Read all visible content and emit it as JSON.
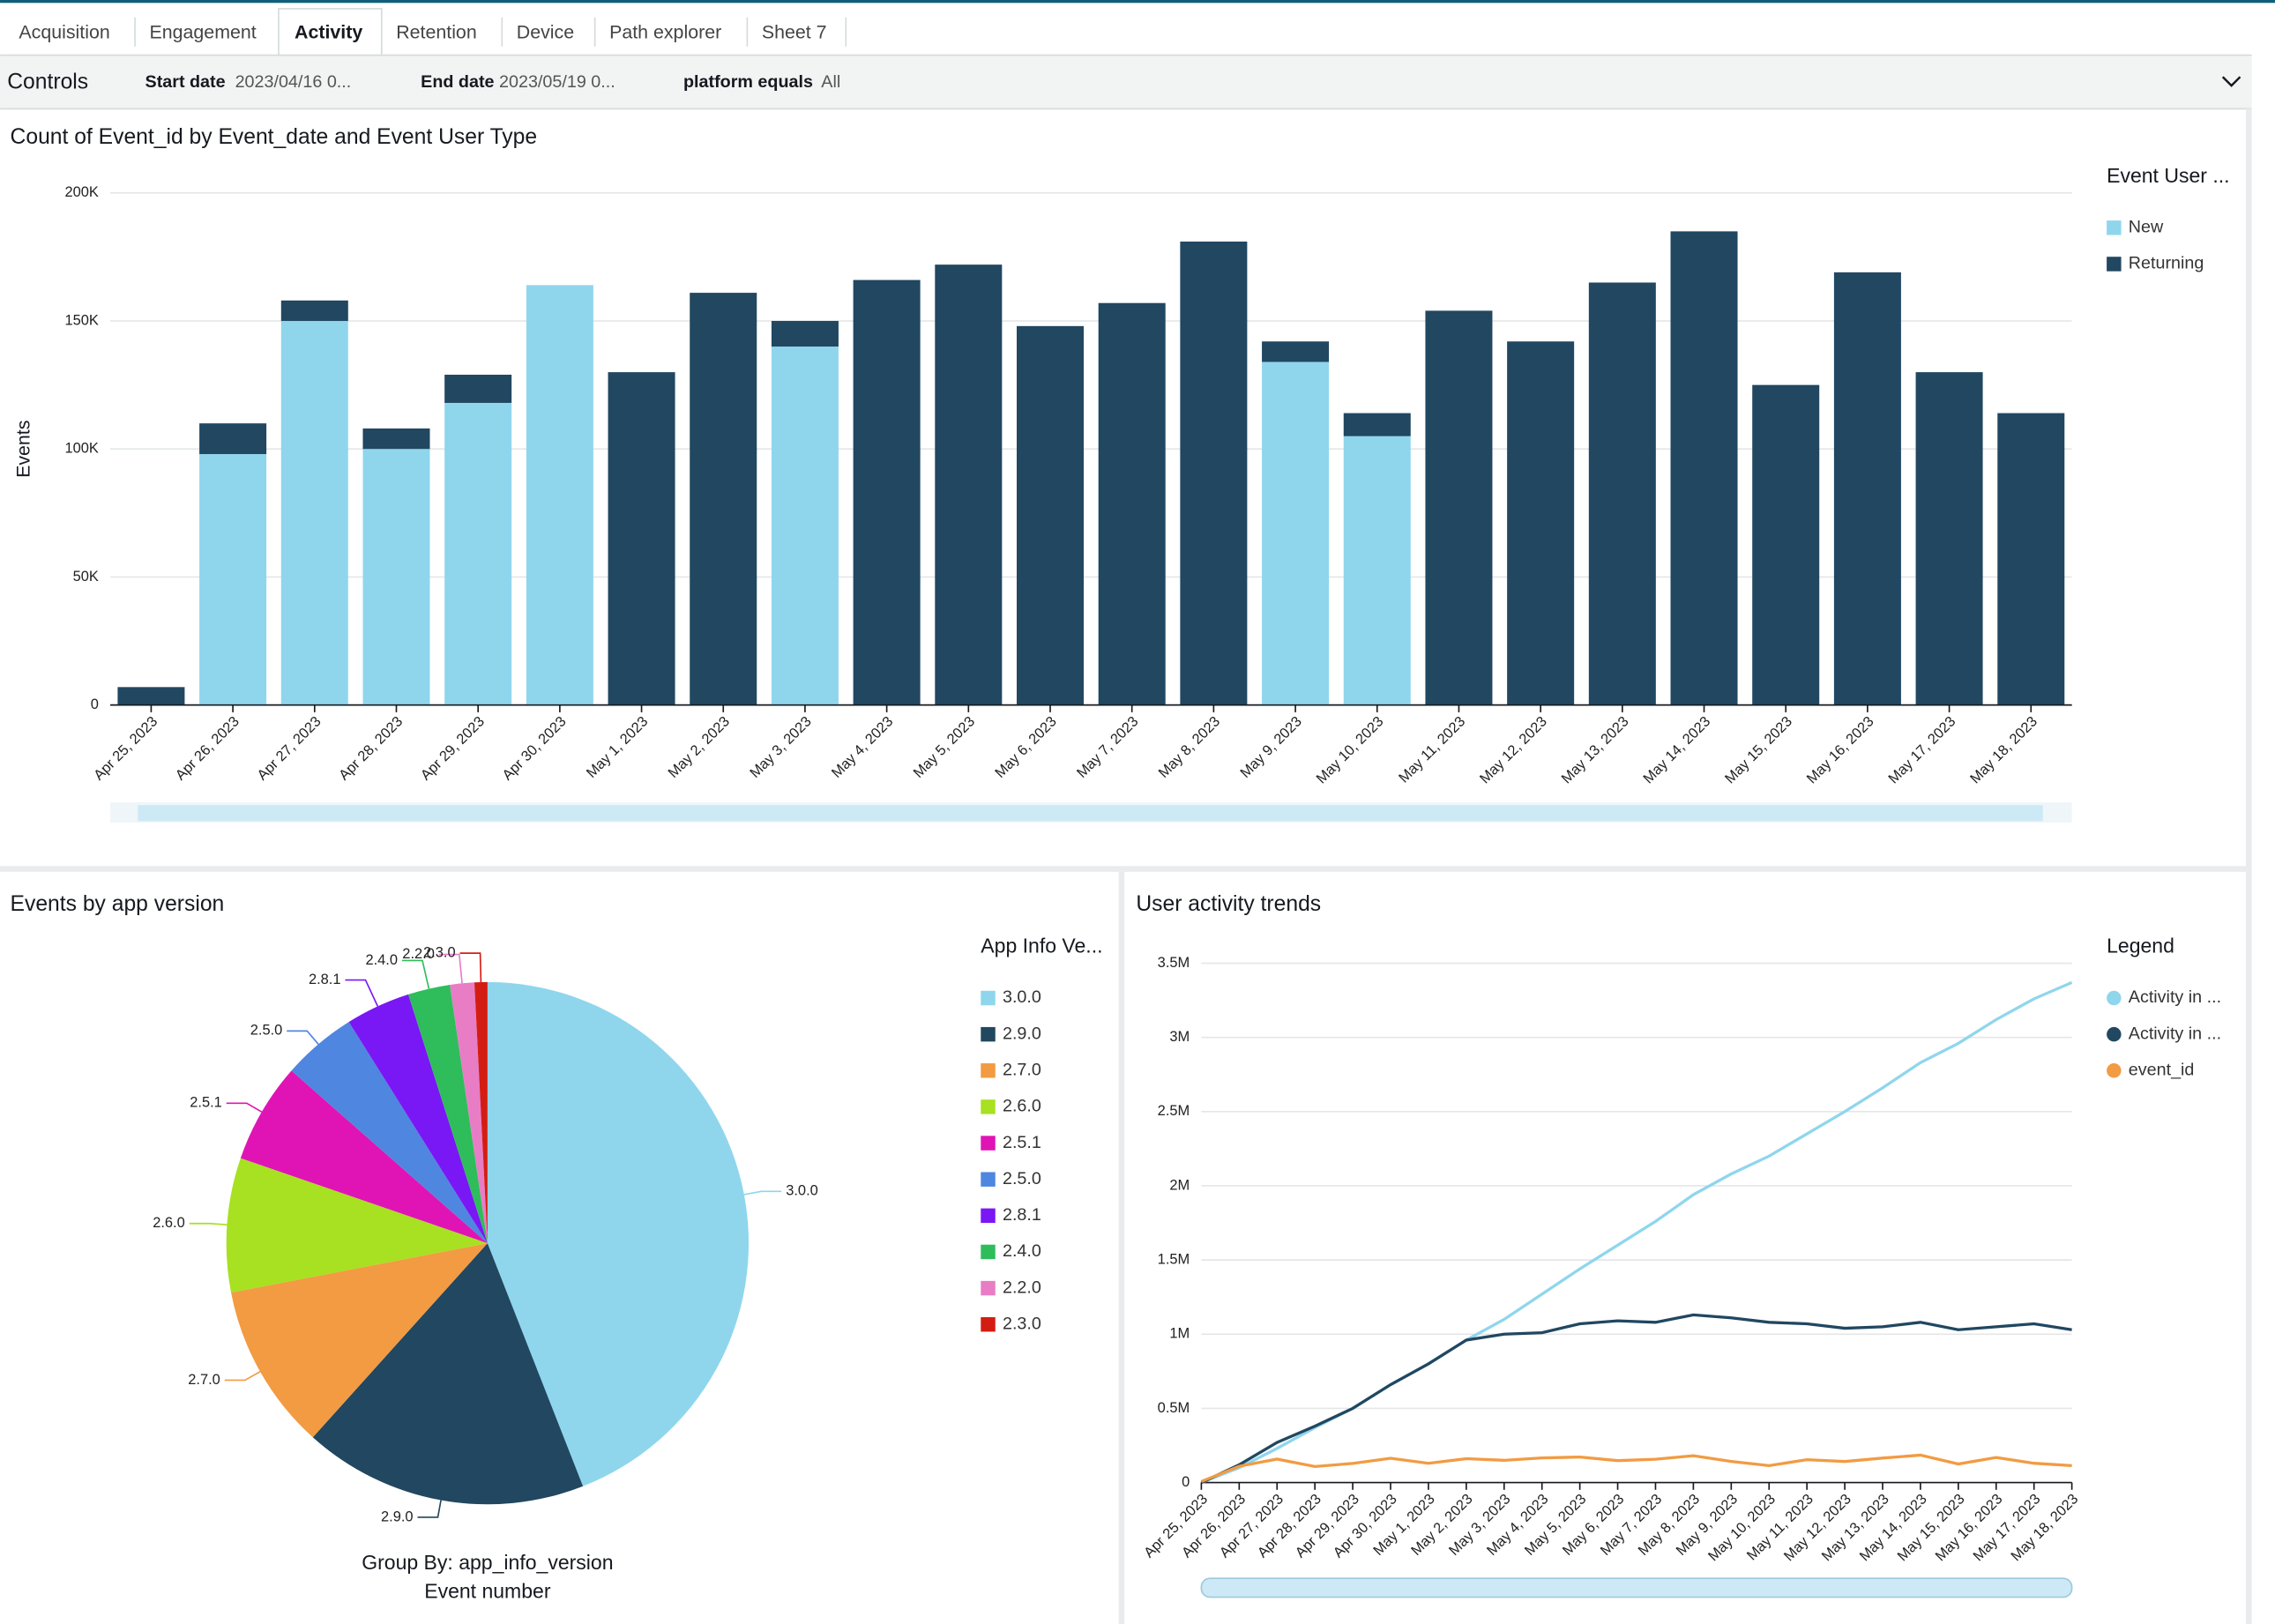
{
  "tabs": [
    "Acquisition",
    "Engagement",
    "Activity",
    "Retention",
    "Device",
    "Path explorer",
    "Sheet 7"
  ],
  "active_tab": 2,
  "controls": {
    "title": "Controls",
    "filters": [
      {
        "label": "Start date",
        "value": "2023/04/16 0..."
      },
      {
        "label": "End date",
        "value": "2023/05/19 0..."
      },
      {
        "label": "platform equals",
        "value": "All"
      }
    ]
  },
  "chart_data": [
    {
      "type": "bar",
      "stacked": true,
      "title": "Count of Event_id by Event_date and Event User Type",
      "y_label": "Events",
      "legend_title": "Event User ...",
      "legend": "right",
      "grid": true,
      "categories": [
        "Apr 25, 2023",
        "Apr 26, 2023",
        "Apr 27, 2023",
        "Apr 28, 2023",
        "Apr 29, 2023",
        "Apr 30, 2023",
        "May 1, 2023",
        "May 2, 2023",
        "May 3, 2023",
        "May 4, 2023",
        "May 5, 2023",
        "May 6, 2023",
        "May 7, 2023",
        "May 8, 2023",
        "May 9, 2023",
        "May 10, 2023",
        "May 11, 2023",
        "May 12, 2023",
        "May 13, 2023",
        "May 14, 2023",
        "May 15, 2023",
        "May 16, 2023",
        "May 17, 2023",
        "May 18, 2023"
      ],
      "series": [
        {
          "name": "New",
          "color": "#8fd6ed",
          "values": [
            0,
            98000,
            150000,
            100000,
            118000,
            164000,
            0,
            0,
            140000,
            0,
            0,
            0,
            0,
            0,
            134000,
            105000,
            0,
            0,
            0,
            0,
            0,
            0,
            0,
            0
          ]
        },
        {
          "name": "Returning",
          "color": "#214761",
          "values": [
            7000,
            12000,
            8000,
            8000,
            11000,
            0,
            130000,
            161000,
            10000,
            166000,
            172000,
            148000,
            157000,
            181000,
            8000,
            9000,
            154000,
            142000,
            165000,
            185000,
            125000,
            169000,
            130000,
            114000
          ]
        }
      ],
      "ylim": [
        0,
        200000
      ],
      "yticks": [
        0,
        {
          "value": 50000,
          "label": "50K"
        },
        {
          "value": 100000,
          "label": "100K"
        },
        {
          "value": 150000,
          "label": "150K"
        },
        {
          "value": 200000,
          "label": "200K"
        }
      ]
    },
    {
      "type": "pie",
      "title": "Events by app version",
      "legend_title": "App Info Ve...",
      "legend": "right",
      "group_label": "Group By: app_info_version",
      "value_label": "Event number",
      "categories": [
        "3.0.0",
        "2.9.0",
        "2.7.0",
        "2.6.0",
        "2.5.1",
        "2.5.0",
        "2.8.1",
        "2.4.0",
        "2.2.0",
        "2.3.0"
      ],
      "values": [
        44,
        17.6,
        10.3,
        8.3,
        6.2,
        4.6,
        4,
        2.6,
        1.5,
        0.8
      ],
      "colors": [
        "#8fd6ed",
        "#214761",
        "#f29b42",
        "#a8e022",
        "#e014b4",
        "#4f86e0",
        "#7a17f5",
        "#2fbd5c",
        "#e87dc6",
        "#d41d12"
      ]
    },
    {
      "type": "line",
      "title": "User activity trends",
      "legend_title": "Legend",
      "legend": "right",
      "grid": true,
      "categories": [
        "Apr 25, 2023",
        "Apr 26, 2023",
        "Apr 27, 2023",
        "Apr 28, 2023",
        "Apr 29, 2023",
        "Apr 30, 2023",
        "May 1, 2023",
        "May 2, 2023",
        "May 3, 2023",
        "May 4, 2023",
        "May 5, 2023",
        "May 6, 2023",
        "May 7, 2023",
        "May 8, 2023",
        "May 9, 2023",
        "May 10, 2023",
        "May 11, 2023",
        "May 12, 2023",
        "May 13, 2023",
        "May 14, 2023",
        "May 15, 2023",
        "May 16, 2023",
        "May 17, 2023",
        "May 18, 2023"
      ],
      "series": [
        {
          "name": "Activity in ...",
          "color": "#8fd6ed",
          "values": [
            0,
            100000,
            230000,
            370000,
            500000,
            660000,
            800000,
            960000,
            1100000,
            1270000,
            1440000,
            1600000,
            1760000,
            1940000,
            2080000,
            2200000,
            2350000,
            2500000,
            2660000,
            2830000,
            2960000,
            3120000,
            3260000,
            3370000
          ]
        },
        {
          "name": "Activity in ...",
          "color": "#214761",
          "values": [
            0,
            120000,
            270000,
            380000,
            500000,
            660000,
            800000,
            960000,
            1000000,
            1010000,
            1070000,
            1090000,
            1080000,
            1130000,
            1110000,
            1080000,
            1070000,
            1040000,
            1050000,
            1080000,
            1030000,
            1050000,
            1070000,
            1030000
          ]
        },
        {
          "name": "event_id",
          "color": "#f29b42",
          "values": [
            7000,
            110000,
            158000,
            108000,
            129000,
            164000,
            130000,
            161000,
            150000,
            166000,
            172000,
            148000,
            157000,
            181000,
            142000,
            114000,
            154000,
            142000,
            165000,
            185000,
            125000,
            169000,
            130000,
            114000
          ]
        }
      ],
      "ylim": [
        0,
        3500000
      ],
      "yticks": [
        0,
        {
          "value": 500000,
          "label": "0.5M"
        },
        {
          "value": 1000000,
          "label": "1M"
        },
        {
          "value": 1500000,
          "label": "1.5M"
        },
        {
          "value": 2000000,
          "label": "2M"
        },
        {
          "value": 2500000,
          "label": "2.5M"
        },
        {
          "value": 3000000,
          "label": "3M"
        },
        {
          "value": 3500000,
          "label": "3.5M"
        }
      ]
    }
  ]
}
